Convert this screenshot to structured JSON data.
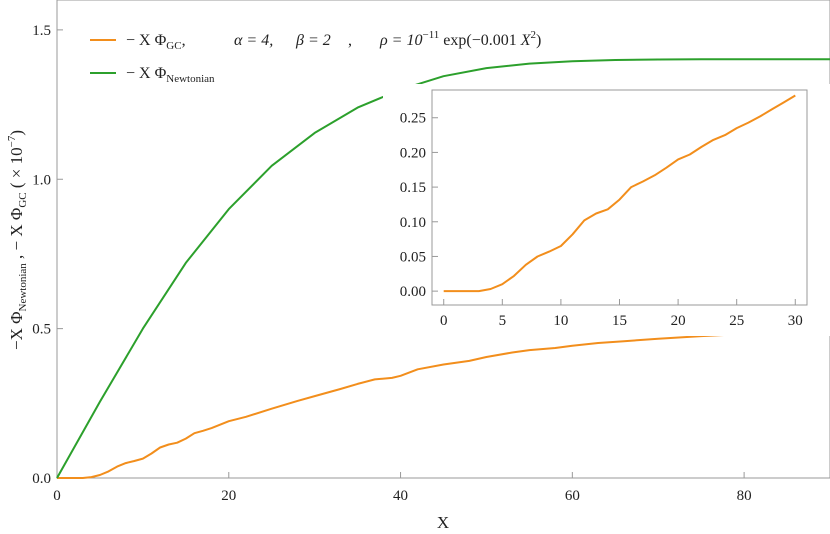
{
  "chart_data": [
    {
      "type": "line",
      "xlabel": "X",
      "ylabel_html": "−X Φ<sub>Newtonian</sub> , − X  Φ<sub>GC</sub>  ( × 10<sup>−7</sup>)",
      "ylabel_parts": {
        "a": "−X Φ",
        "a_sub": "Newtonian",
        "b": " , − X  Φ",
        "b_sub": "GC",
        "c": "  ( × 10",
        "c_sup": "−7",
        "d": ")"
      },
      "xlim": [
        0,
        90
      ],
      "ylim": [
        0,
        1.6
      ],
      "xticks": [
        0,
        20,
        40,
        60,
        80
      ],
      "xtick_labels": [
        "0",
        "20",
        "40",
        "60",
        "80"
      ],
      "yticks": [
        0,
        0.5,
        1.0,
        1.5
      ],
      "ytick_labels": [
        "0.0",
        "0.5",
        "1.0",
        "1.5"
      ],
      "legend_position": "top-left",
      "series": [
        {
          "name": "− X Φ_GC,  α = 4,  β = 2 ,  ρ = 10^−11 exp(−0.001 X^2)",
          "legend": {
            "a": "− X Φ",
            "a_sub": "GC",
            "b": ",",
            "alpha": "α = 4,",
            "beta": "β = 2",
            "comma": ",",
            "rho_a": "ρ = 10",
            "rho_sup": "−11",
            "rho_b": " exp(−0.001 ",
            "rho_X": "X",
            "rho_sup2": "2",
            "rho_c": ")"
          },
          "color": "#f28e1c",
          "x": [
            0,
            2,
            3,
            4,
            5,
            6,
            7,
            8,
            9,
            10,
            11,
            12,
            13,
            14,
            15,
            16,
            17,
            18,
            20,
            22,
            25,
            28,
            30,
            33,
            35,
            37,
            39,
            40,
            42,
            45,
            48,
            50,
            53,
            55,
            58,
            60,
            63,
            66,
            70,
            75,
            80,
            85,
            90
          ],
          "y": [
            0,
            0.0,
            0.0,
            0.003,
            0.01,
            0.022,
            0.038,
            0.05,
            0.057,
            0.065,
            0.082,
            0.102,
            0.112,
            0.118,
            0.132,
            0.15,
            0.158,
            0.167,
            0.19,
            0.205,
            0.232,
            0.258,
            0.274,
            0.298,
            0.315,
            0.33,
            0.335,
            0.342,
            0.364,
            0.38,
            0.392,
            0.405,
            0.42,
            0.428,
            0.435,
            0.443,
            0.452,
            0.458,
            0.466,
            0.475,
            0.482,
            0.49,
            0.497
          ]
        },
        {
          "name": "− X Φ_Newtonian",
          "legend": {
            "a": "− X Φ",
            "a_sub": "Newtonian"
          },
          "color": "#2ca02c",
          "x": [
            0,
            5,
            10,
            15,
            20,
            25,
            30,
            35,
            40,
            45,
            50,
            55,
            60,
            65,
            70,
            75,
            80,
            85,
            90
          ],
          "y": [
            0,
            0.255,
            0.5,
            0.72,
            0.9,
            1.045,
            1.155,
            1.24,
            1.3,
            1.345,
            1.372,
            1.387,
            1.395,
            1.399,
            1.401,
            1.402,
            1.402,
            1.402,
            1.402
          ]
        }
      ]
    },
    {
      "type": "line",
      "role": "inset",
      "xlim": [
        -1,
        31
      ],
      "ylim": [
        -0.02,
        0.29
      ],
      "xticks": [
        0,
        5,
        10,
        15,
        20,
        25,
        30
      ],
      "xtick_labels": [
        "0",
        "5",
        "10",
        "15",
        "20",
        "25",
        "30"
      ],
      "yticks": [
        0,
        0.05,
        0.1,
        0.15,
        0.2,
        0.25
      ],
      "ytick_labels": [
        "0.00",
        "0.05",
        "0.10",
        "0.15",
        "0.20",
        "0.25"
      ],
      "series": [
        {
          "color": "#f28e1c",
          "x": [
            0,
            2,
            3,
            4,
            5,
            6,
            7,
            8,
            9,
            10,
            11,
            12,
            13,
            14,
            15,
            16,
            17,
            18,
            19,
            20,
            21,
            22,
            23,
            24,
            25,
            26,
            27,
            28,
            29,
            30
          ],
          "y": [
            0,
            0.0,
            0.0,
            0.003,
            0.01,
            0.022,
            0.038,
            0.05,
            0.057,
            0.065,
            0.082,
            0.102,
            0.112,
            0.118,
            0.132,
            0.15,
            0.158,
            0.167,
            0.178,
            0.19,
            0.197,
            0.208,
            0.218,
            0.225,
            0.235,
            0.243,
            0.252,
            0.262,
            0.272,
            0.282
          ]
        }
      ]
    }
  ]
}
